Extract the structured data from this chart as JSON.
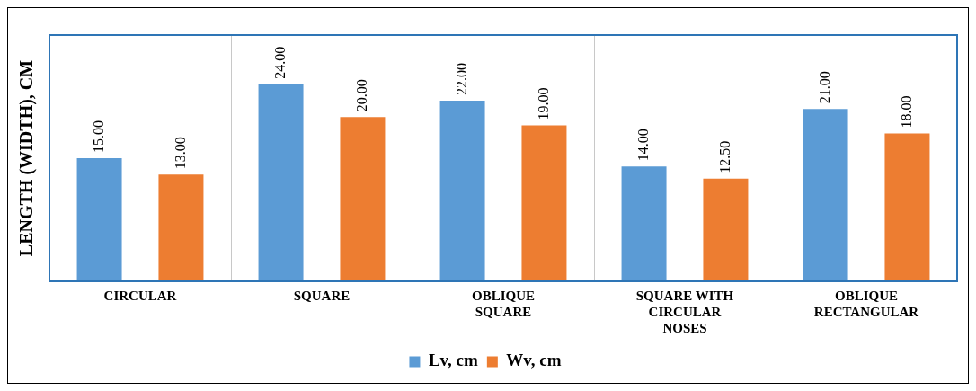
{
  "chart_data": {
    "type": "bar",
    "ylabel": "LENGTH (WIDTH), CM",
    "categories": [
      "CIRCULAR",
      "SQUARE",
      "OBLIQUE SQUARE",
      "SQUARE WITH CIRCULAR NOSES",
      "OBLIQUE RECTANGULAR"
    ],
    "series": [
      {
        "name": "Lv, cm",
        "color": "#5b9bd5",
        "values": [
          15,
          24,
          22,
          14,
          21
        ],
        "value_labels": [
          "15.00",
          "24.00",
          "22.00",
          "14.00",
          "21.00"
        ]
      },
      {
        "name": "Wv, cm",
        "color": "#ed7d31",
        "values": [
          13,
          20,
          19,
          12.5,
          18
        ],
        "value_labels": [
          "13.00",
          "20.00",
          "19.00",
          "12.50",
          "18.00"
        ]
      }
    ],
    "grid": "x",
    "legend": "bottom",
    "tick_labels": "x"
  }
}
